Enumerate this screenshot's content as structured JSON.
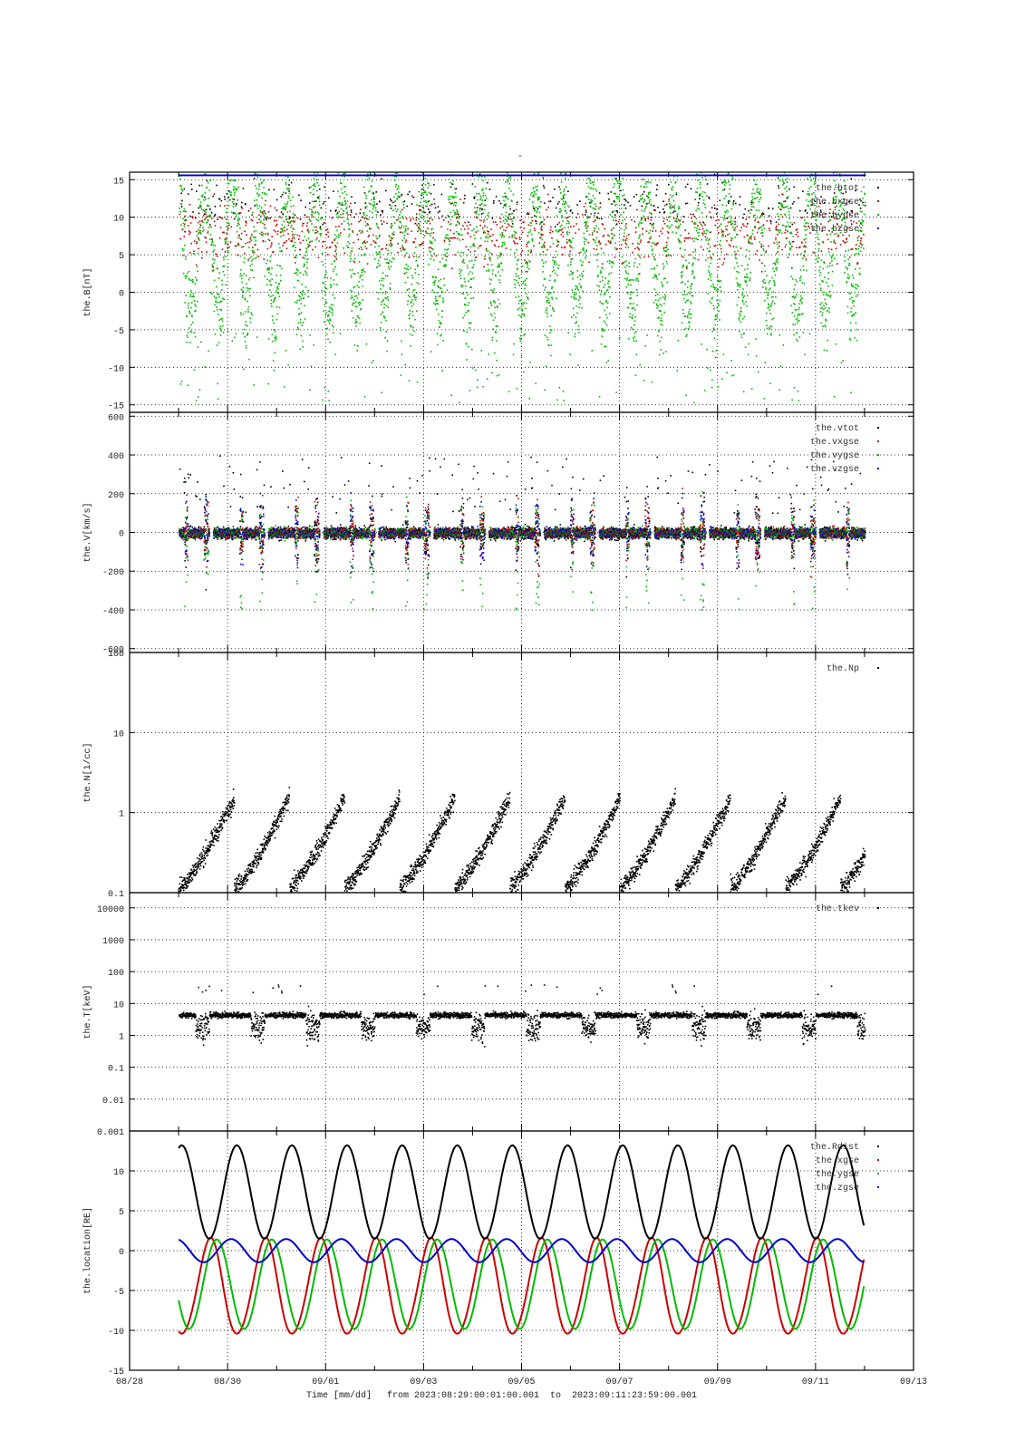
{
  "figure": {
    "title": "-",
    "x_axis_caption": "Time [mm/dd]",
    "range_text": "from 2023:08:29:00:01:00.001  to  2023:09:11:23:59:00.001"
  },
  "chart_data": [
    {
      "id": "B",
      "type": "scatter",
      "ylabel": "the.B[nT]",
      "yscale": "linear",
      "ylim": [
        -16,
        16
      ],
      "yticks": [
        15,
        10,
        5,
        0,
        -5,
        -10,
        -15
      ],
      "grid": true,
      "legend_position": "top-right",
      "series": [
        {
          "name": "the.btot",
          "color": "#000000"
        },
        {
          "name": "the.bxgse",
          "color": "#cc0000"
        },
        {
          "name": "the.bygse",
          "color": "#00bb00"
        },
        {
          "name": "the.bzgse",
          "color": "#0000cc"
        }
      ]
    },
    {
      "id": "V",
      "type": "scatter",
      "ylabel": "the.V[km/s]",
      "yscale": "linear",
      "ylim": [
        -620,
        620
      ],
      "yticks": [
        600,
        400,
        200,
        0,
        -200,
        -400,
        -600
      ],
      "grid": true,
      "legend_position": "top-right",
      "series": [
        {
          "name": "the.vtot",
          "color": "#000000"
        },
        {
          "name": "the.vxgse",
          "color": "#cc0000"
        },
        {
          "name": "the.vygse",
          "color": "#00bb00"
        },
        {
          "name": "the.vzgse",
          "color": "#0000cc"
        }
      ]
    },
    {
      "id": "N",
      "type": "scatter",
      "ylabel": "the.N[1/cc]",
      "yscale": "log",
      "ylim": [
        0.1,
        100
      ],
      "yticks": [
        100,
        10,
        1,
        0.1
      ],
      "grid": true,
      "legend_position": "top-right",
      "series": [
        {
          "name": "the.Np",
          "color": "#000000"
        }
      ]
    },
    {
      "id": "T",
      "type": "scatter",
      "ylabel": "the.T[keV]",
      "yscale": "log",
      "ylim": [
        0.001,
        30000
      ],
      "yticks": [
        10000,
        1000,
        100,
        10,
        1,
        0.1,
        0.01,
        0.001
      ],
      "grid": true,
      "legend_position": "top-right",
      "series": [
        {
          "name": "the.tkev",
          "color": "#000000"
        }
      ]
    },
    {
      "id": "location",
      "type": "line",
      "ylabel": "the.location[RE]",
      "yscale": "linear",
      "ylim": [
        -15,
        15
      ],
      "yticks": [
        10,
        5,
        0,
        -5,
        -10,
        -15
      ],
      "grid": true,
      "legend_position": "top-right",
      "orbit_period_days": 1.125,
      "series": [
        {
          "name": "the.Rdist",
          "color": "#000000",
          "min": 1.5,
          "max": 13.2
        },
        {
          "name": "the.xgse",
          "color": "#cc0000",
          "min": -11,
          "max": 1.5
        },
        {
          "name": "the.ygse",
          "color": "#00bb00",
          "min": -10,
          "max": 1.6
        },
        {
          "name": "the.zgse",
          "color": "#0000cc",
          "min": -1.5,
          "max": 1.5
        }
      ]
    }
  ],
  "x_axis": {
    "start": "2023-08-28",
    "end": "2023-09-13",
    "data_start": "2023-08-29T00:01:00",
    "data_end": "2023-09-11T23:59:00",
    "tick_labels": [
      "08/28",
      "08/30",
      "09/01",
      "09/03",
      "09/05",
      "09/07",
      "09/09",
      "09/11",
      "09/13"
    ]
  }
}
